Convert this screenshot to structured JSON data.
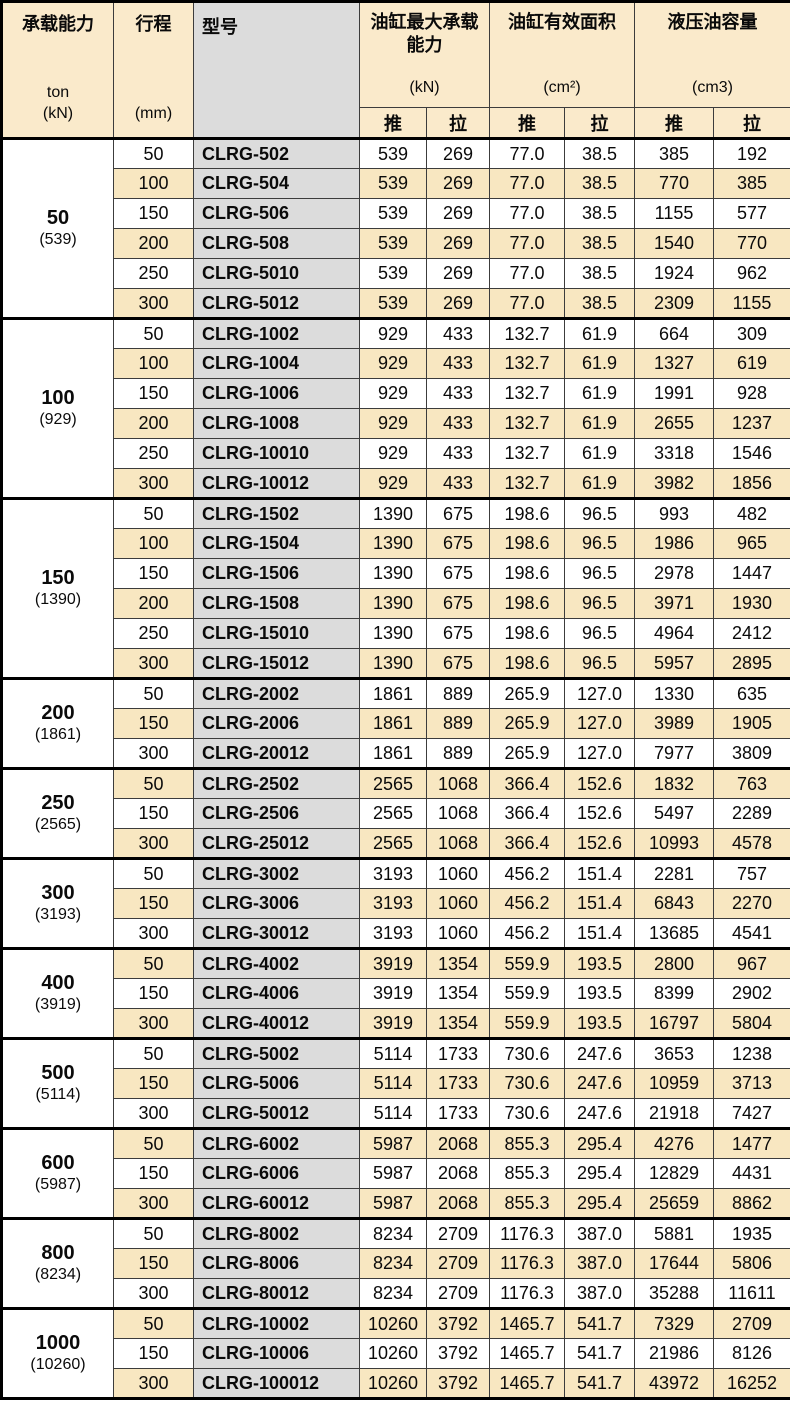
{
  "colors": {
    "stripe": "#F8E7C1",
    "header_bg": "#FAEACB",
    "model_bg": "#DCDCDC",
    "border_thin": "#3c3c3c",
    "border_thick": "#000000"
  },
  "table": {
    "header": {
      "capacity": {
        "title": "承载能力",
        "unit_ton": "ton",
        "unit_kn": "(kN)"
      },
      "stroke": {
        "title": "行程",
        "unit": "(mm)"
      },
      "model": {
        "title": "型号"
      },
      "groups": [
        {
          "title": "油缸最大承载能力",
          "unit": "(kN)"
        },
        {
          "title": "油缸有效面积",
          "unit": "(cm²)"
        },
        {
          "title": "液压油容量",
          "unit": "(cm3)"
        }
      ],
      "push": "推",
      "pull": "拉"
    },
    "groups": [
      {
        "ton": "50",
        "kn": "(539)",
        "rows": [
          [
            "50",
            "CLRG-502",
            "539",
            "269",
            "77.0",
            "38.5",
            "385",
            "192"
          ],
          [
            "100",
            "CLRG-504",
            "539",
            "269",
            "77.0",
            "38.5",
            "770",
            "385"
          ],
          [
            "150",
            "CLRG-506",
            "539",
            "269",
            "77.0",
            "38.5",
            "1155",
            "577"
          ],
          [
            "200",
            "CLRG-508",
            "539",
            "269",
            "77.0",
            "38.5",
            "1540",
            "770"
          ],
          [
            "250",
            "CLRG-5010",
            "539",
            "269",
            "77.0",
            "38.5",
            "1924",
            "962"
          ],
          [
            "300",
            "CLRG-5012",
            "539",
            "269",
            "77.0",
            "38.5",
            "2309",
            "1155"
          ]
        ]
      },
      {
        "ton": "100",
        "kn": "(929)",
        "rows": [
          [
            "50",
            "CLRG-1002",
            "929",
            "433",
            "132.7",
            "61.9",
            "664",
            "309"
          ],
          [
            "100",
            "CLRG-1004",
            "929",
            "433",
            "132.7",
            "61.9",
            "1327",
            "619"
          ],
          [
            "150",
            "CLRG-1006",
            "929",
            "433",
            "132.7",
            "61.9",
            "1991",
            "928"
          ],
          [
            "200",
            "CLRG-1008",
            "929",
            "433",
            "132.7",
            "61.9",
            "2655",
            "1237"
          ],
          [
            "250",
            "CLRG-10010",
            "929",
            "433",
            "132.7",
            "61.9",
            "3318",
            "1546"
          ],
          [
            "300",
            "CLRG-10012",
            "929",
            "433",
            "132.7",
            "61.9",
            "3982",
            "1856"
          ]
        ]
      },
      {
        "ton": "150",
        "kn": "(1390)",
        "rows": [
          [
            "50",
            "CLRG-1502",
            "1390",
            "675",
            "198.6",
            "96.5",
            "993",
            "482"
          ],
          [
            "100",
            "CLRG-1504",
            "1390",
            "675",
            "198.6",
            "96.5",
            "1986",
            "965"
          ],
          [
            "150",
            "CLRG-1506",
            "1390",
            "675",
            "198.6",
            "96.5",
            "2978",
            "1447"
          ],
          [
            "200",
            "CLRG-1508",
            "1390",
            "675",
            "198.6",
            "96.5",
            "3971",
            "1930"
          ],
          [
            "250",
            "CLRG-15010",
            "1390",
            "675",
            "198.6",
            "96.5",
            "4964",
            "2412"
          ],
          [
            "300",
            "CLRG-15012",
            "1390",
            "675",
            "198.6",
            "96.5",
            "5957",
            "2895"
          ]
        ]
      },
      {
        "ton": "200",
        "kn": "(1861)",
        "rows": [
          [
            "50",
            "CLRG-2002",
            "1861",
            "889",
            "265.9",
            "127.0",
            "1330",
            "635"
          ],
          [
            "150",
            "CLRG-2006",
            "1861",
            "889",
            "265.9",
            "127.0",
            "3989",
            "1905"
          ],
          [
            "300",
            "CLRG-20012",
            "1861",
            "889",
            "265.9",
            "127.0",
            "7977",
            "3809"
          ]
        ]
      },
      {
        "ton": "250",
        "kn": "(2565)",
        "rows": [
          [
            "50",
            "CLRG-2502",
            "2565",
            "1068",
            "366.4",
            "152.6",
            "1832",
            "763"
          ],
          [
            "150",
            "CLRG-2506",
            "2565",
            "1068",
            "366.4",
            "152.6",
            "5497",
            "2289"
          ],
          [
            "300",
            "CLRG-25012",
            "2565",
            "1068",
            "366.4",
            "152.6",
            "10993",
            "4578"
          ]
        ]
      },
      {
        "ton": "300",
        "kn": "(3193)",
        "rows": [
          [
            "50",
            "CLRG-3002",
            "3193",
            "1060",
            "456.2",
            "151.4",
            "2281",
            "757"
          ],
          [
            "150",
            "CLRG-3006",
            "3193",
            "1060",
            "456.2",
            "151.4",
            "6843",
            "2270"
          ],
          [
            "300",
            "CLRG-30012",
            "3193",
            "1060",
            "456.2",
            "151.4",
            "13685",
            "4541"
          ]
        ]
      },
      {
        "ton": "400",
        "kn": "(3919)",
        "rows": [
          [
            "50",
            "CLRG-4002",
            "3919",
            "1354",
            "559.9",
            "193.5",
            "2800",
            "967"
          ],
          [
            "150",
            "CLRG-4006",
            "3919",
            "1354",
            "559.9",
            "193.5",
            "8399",
            "2902"
          ],
          [
            "300",
            "CLRG-40012",
            "3919",
            "1354",
            "559.9",
            "193.5",
            "16797",
            "5804"
          ]
        ]
      },
      {
        "ton": "500",
        "kn": "(5114)",
        "rows": [
          [
            "50",
            "CLRG-5002",
            "5114",
            "1733",
            "730.6",
            "247.6",
            "3653",
            "1238"
          ],
          [
            "150",
            "CLRG-5006",
            "5114",
            "1733",
            "730.6",
            "247.6",
            "10959",
            "3713"
          ],
          [
            "300",
            "CLRG-50012",
            "5114",
            "1733",
            "730.6",
            "247.6",
            "21918",
            "7427"
          ]
        ]
      },
      {
        "ton": "600",
        "kn": "(5987)",
        "rows": [
          [
            "50",
            "CLRG-6002",
            "5987",
            "2068",
            "855.3",
            "295.4",
            "4276",
            "1477"
          ],
          [
            "150",
            "CLRG-6006",
            "5987",
            "2068",
            "855.3",
            "295.4",
            "12829",
            "4431"
          ],
          [
            "300",
            "CLRG-60012",
            "5987",
            "2068",
            "855.3",
            "295.4",
            "25659",
            "8862"
          ]
        ]
      },
      {
        "ton": "800",
        "kn": "(8234)",
        "rows": [
          [
            "50",
            "CLRG-8002",
            "8234",
            "2709",
            "1176.3",
            "387.0",
            "5881",
            "1935"
          ],
          [
            "150",
            "CLRG-8006",
            "8234",
            "2709",
            "1176.3",
            "387.0",
            "17644",
            "5806"
          ],
          [
            "300",
            "CLRG-80012",
            "8234",
            "2709",
            "1176.3",
            "387.0",
            "35288",
            "11611"
          ]
        ]
      },
      {
        "ton": "1000",
        "kn": "(10260)",
        "rows": [
          [
            "50",
            "CLRG-10002",
            "10260",
            "3792",
            "1465.7",
            "541.7",
            "7329",
            "2709"
          ],
          [
            "150",
            "CLRG-10006",
            "10260",
            "3792",
            "1465.7",
            "541.7",
            "21986",
            "8126"
          ],
          [
            "300",
            "CLRG-100012",
            "10260",
            "3792",
            "1465.7",
            "541.7",
            "43972",
            "16252"
          ]
        ]
      }
    ]
  }
}
